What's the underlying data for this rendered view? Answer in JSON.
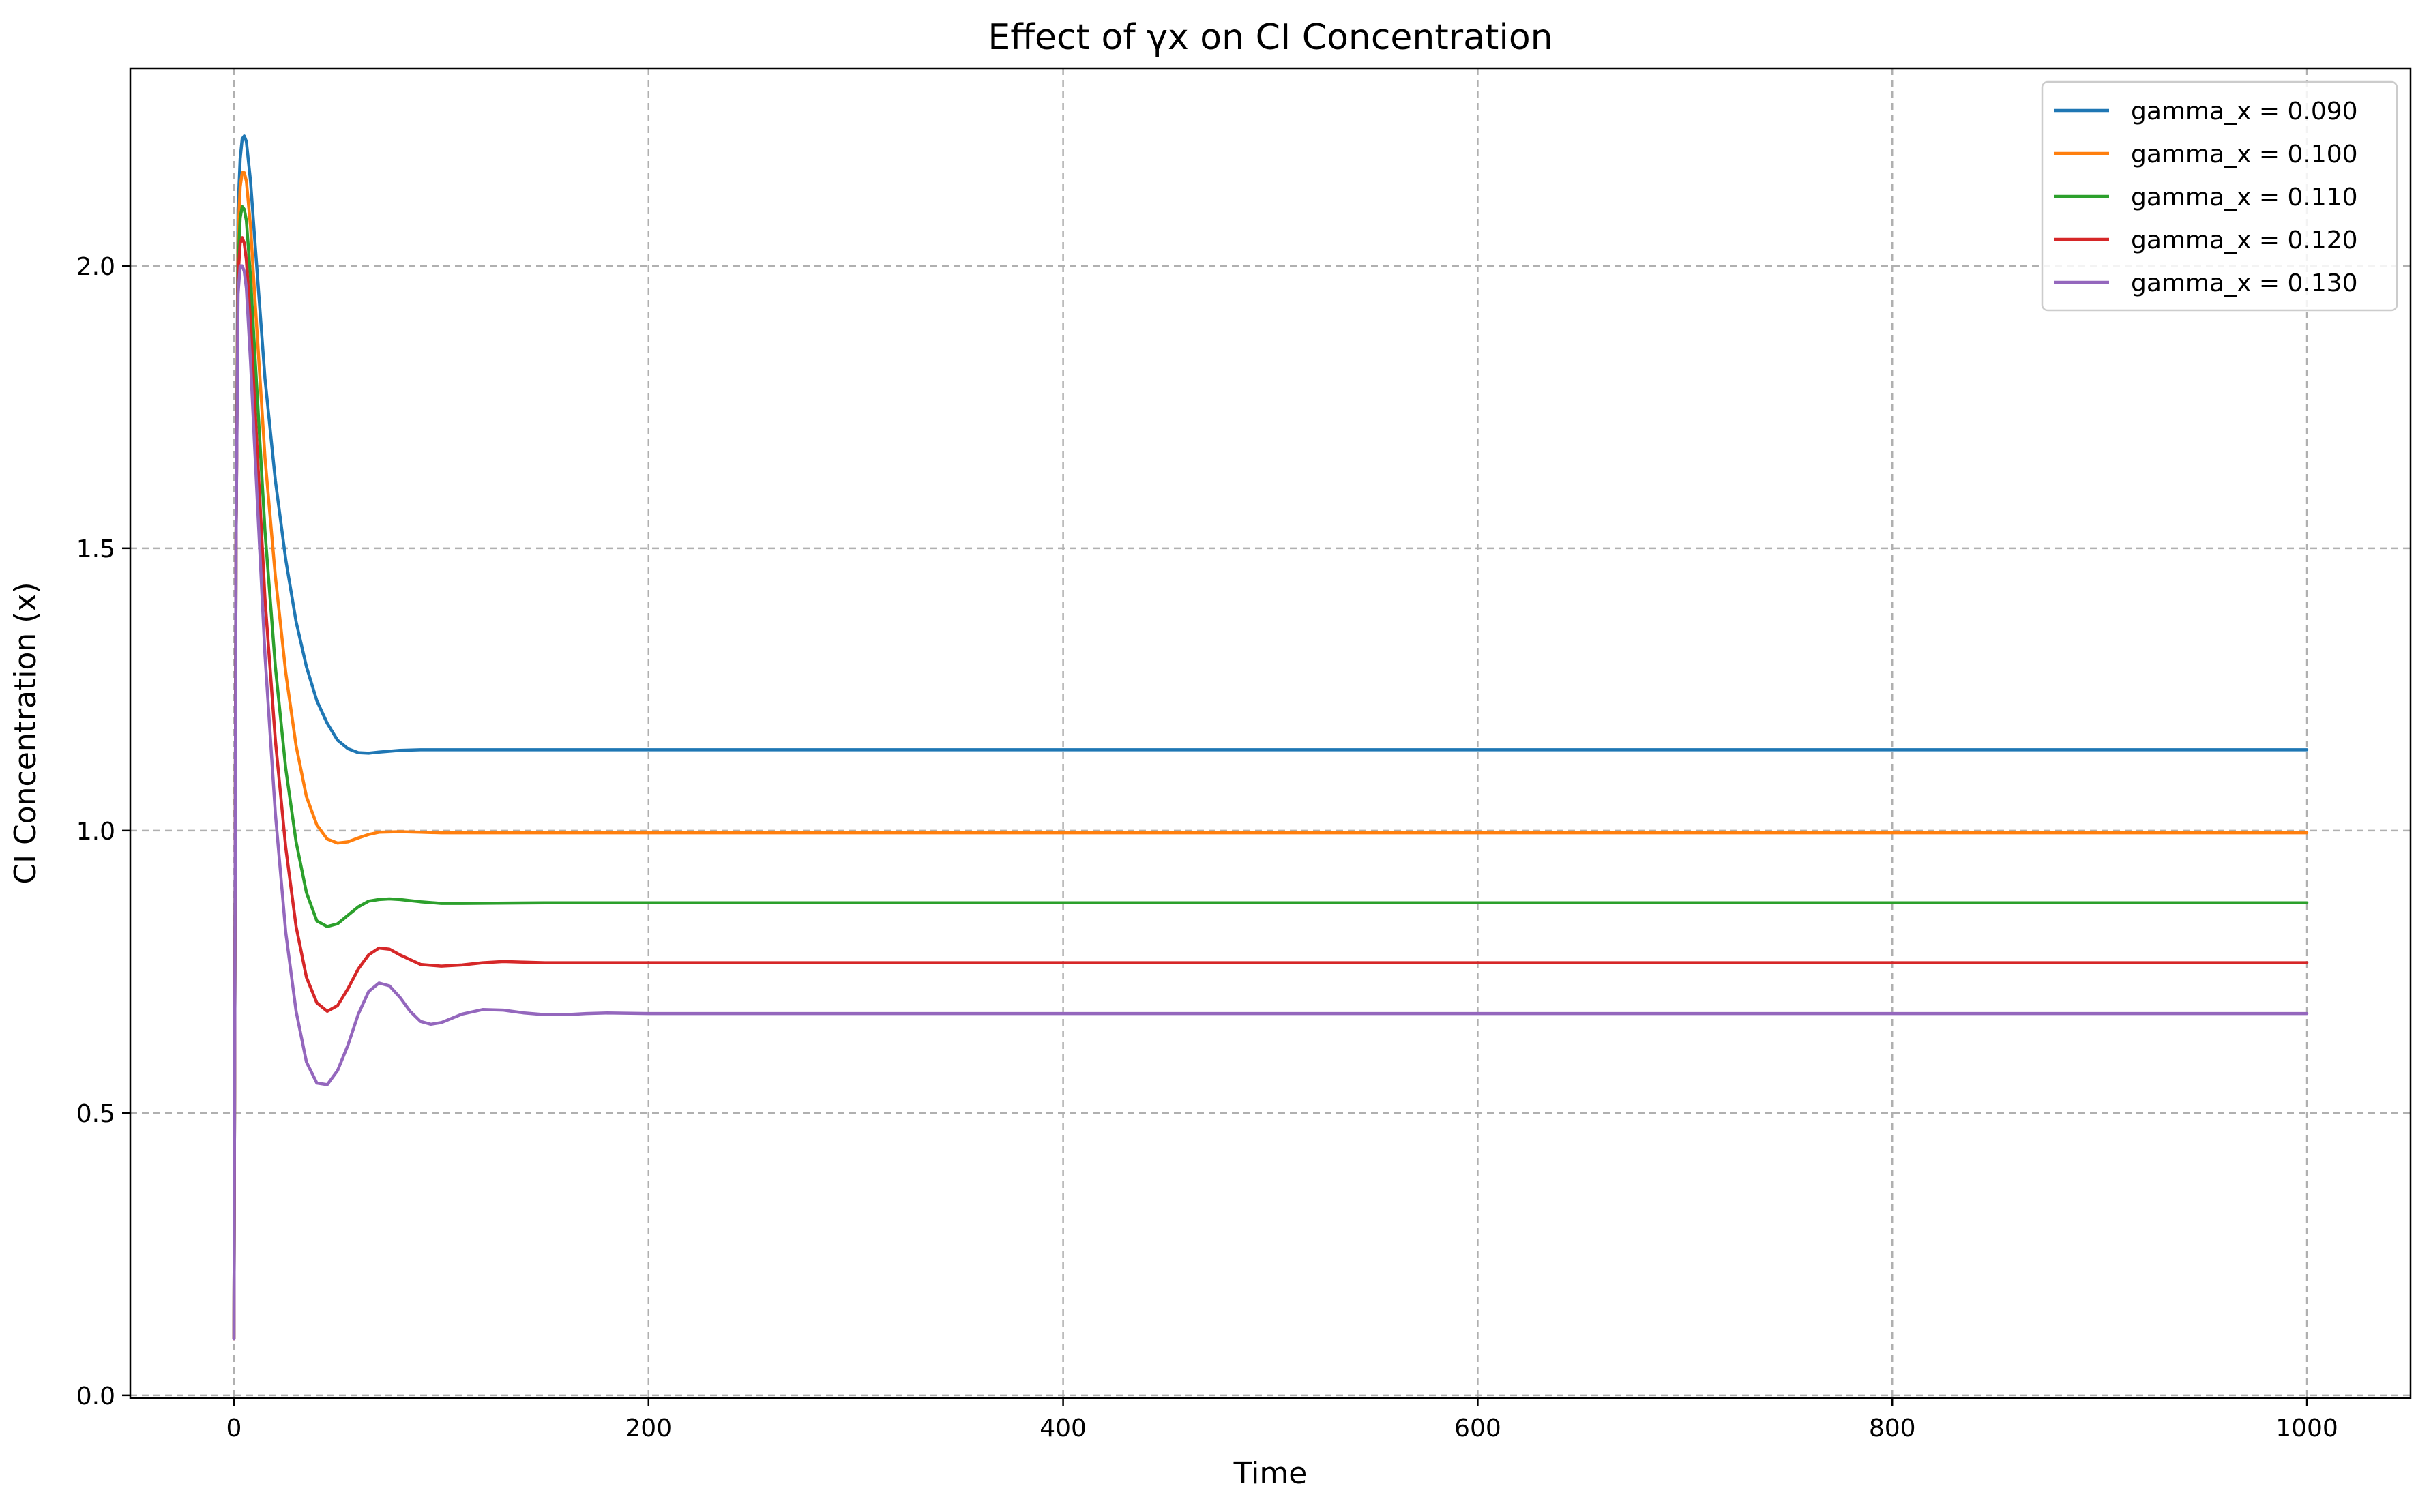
{
  "chart_data": {
    "type": "line",
    "title": "Effect of γx on CI Concentration",
    "xlabel": "Time",
    "ylabel": "CI Concentration (x)",
    "xlim": [
      -50,
      1050
    ],
    "ylim": [
      -0.005,
      2.35
    ],
    "xticks": [
      0,
      200,
      400,
      600,
      800,
      1000
    ],
    "xtick_labels": [
      "0",
      "200",
      "400",
      "600",
      "800",
      "1000"
    ],
    "yticks": [
      0.0,
      0.5,
      1.0,
      1.5,
      2.0
    ],
    "ytick_labels": [
      "0.0",
      "0.5",
      "1.0",
      "1.5",
      "2.0"
    ],
    "grid": true,
    "legend_position": "top-right",
    "series": [
      {
        "name": "gamma_x = 0.090",
        "color": "#1f77b4",
        "x": [
          0,
          1,
          2,
          3,
          4,
          5,
          6,
          8,
          10,
          15,
          20,
          25,
          30,
          35,
          40,
          45,
          50,
          55,
          60,
          65,
          70,
          80,
          90,
          100,
          150,
          200,
          400,
          600,
          800,
          1000
        ],
        "y": [
          0.1,
          1.5,
          2.1,
          2.19,
          2.225,
          2.23,
          2.22,
          2.15,
          2.05,
          1.8,
          1.62,
          1.48,
          1.37,
          1.29,
          1.23,
          1.19,
          1.16,
          1.145,
          1.138,
          1.137,
          1.139,
          1.142,
          1.143,
          1.143,
          1.143,
          1.143,
          1.143,
          1.143,
          1.143,
          1.143
        ]
      },
      {
        "name": "gamma_x = 0.100",
        "color": "#ff7f0e",
        "x": [
          0,
          1,
          2,
          3,
          4,
          5,
          6,
          8,
          10,
          15,
          20,
          25,
          30,
          35,
          40,
          45,
          50,
          55,
          60,
          65,
          70,
          80,
          90,
          100,
          150,
          200,
          400,
          600,
          800,
          1000
        ],
        "y": [
          0.1,
          1.5,
          2.05,
          2.14,
          2.165,
          2.165,
          2.15,
          2.07,
          1.95,
          1.66,
          1.45,
          1.28,
          1.15,
          1.06,
          1.01,
          0.985,
          0.978,
          0.98,
          0.987,
          0.993,
          0.997,
          0.998,
          0.997,
          0.996,
          0.996,
          0.996,
          0.996,
          0.996,
          0.996,
          0.996
        ]
      },
      {
        "name": "gamma_x = 0.110",
        "color": "#2ca02c",
        "x": [
          0,
          1,
          2,
          3,
          4,
          5,
          6,
          8,
          10,
          15,
          20,
          25,
          30,
          35,
          40,
          45,
          50,
          55,
          60,
          65,
          70,
          75,
          80,
          90,
          100,
          110,
          150,
          200,
          400,
          600,
          800,
          1000
        ],
        "y": [
          0.1,
          1.5,
          2.0,
          2.085,
          2.105,
          2.1,
          2.08,
          1.98,
          1.85,
          1.53,
          1.29,
          1.11,
          0.98,
          0.89,
          0.84,
          0.83,
          0.835,
          0.85,
          0.865,
          0.875,
          0.878,
          0.879,
          0.878,
          0.874,
          0.871,
          0.871,
          0.872,
          0.872,
          0.872,
          0.872,
          0.872,
          0.872
        ]
      },
      {
        "name": "gamma_x = 0.120",
        "color": "#d62728",
        "x": [
          0,
          1,
          2,
          3,
          4,
          5,
          6,
          8,
          10,
          15,
          20,
          25,
          30,
          35,
          40,
          45,
          50,
          55,
          60,
          65,
          70,
          75,
          80,
          90,
          100,
          110,
          120,
          130,
          140,
          150,
          200,
          400,
          600,
          800,
          1000
        ],
        "y": [
          0.1,
          1.5,
          1.98,
          2.04,
          2.05,
          2.04,
          2.01,
          1.9,
          1.76,
          1.41,
          1.16,
          0.97,
          0.83,
          0.74,
          0.695,
          0.68,
          0.69,
          0.72,
          0.755,
          0.78,
          0.792,
          0.79,
          0.78,
          0.763,
          0.76,
          0.762,
          0.766,
          0.768,
          0.767,
          0.766,
          0.766,
          0.766,
          0.766,
          0.766,
          0.766
        ]
      },
      {
        "name": "gamma_x = 0.130",
        "color": "#9467bd",
        "x": [
          0,
          1,
          2,
          3,
          4,
          5,
          6,
          8,
          10,
          15,
          20,
          25,
          30,
          35,
          40,
          45,
          50,
          55,
          60,
          65,
          70,
          75,
          80,
          85,
          90,
          95,
          100,
          110,
          120,
          130,
          140,
          150,
          160,
          170,
          180,
          200,
          400,
          600,
          800,
          1000
        ],
        "y": [
          0.1,
          1.5,
          1.95,
          2.0,
          2.0,
          1.99,
          1.96,
          1.83,
          1.68,
          1.31,
          1.03,
          0.82,
          0.68,
          0.59,
          0.553,
          0.55,
          0.575,
          0.62,
          0.675,
          0.715,
          0.73,
          0.725,
          0.705,
          0.68,
          0.662,
          0.657,
          0.66,
          0.675,
          0.683,
          0.682,
          0.677,
          0.674,
          0.674,
          0.676,
          0.677,
          0.676,
          0.676,
          0.676,
          0.676,
          0.676
        ]
      }
    ]
  }
}
